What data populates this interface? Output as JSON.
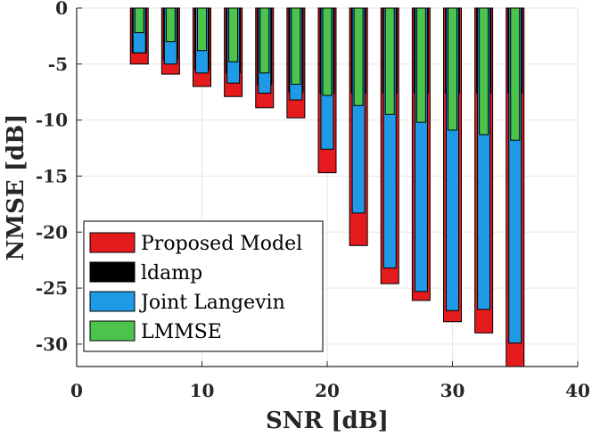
{
  "chart_data": {
    "type": "bar",
    "title": "",
    "xlabel": "SNR [dB]",
    "ylabel": "NMSE [dB]",
    "xlim": [
      0,
      40
    ],
    "ylim": [
      -32,
      0
    ],
    "xticks": [
      0,
      10,
      20,
      30,
      40
    ],
    "yticks": [
      0,
      -5,
      -10,
      -15,
      -20,
      -25,
      -30
    ],
    "grid": true,
    "legend_position": "bottom-left",
    "x": [
      5,
      7.5,
      10,
      12.5,
      15,
      17.5,
      20,
      22.5,
      25,
      27.5,
      30,
      32.5,
      35
    ],
    "series": [
      {
        "name": "Proposed Model",
        "color": "#e41a1c",
        "values": [
          -5.0,
          -5.9,
          -7.0,
          -7.9,
          -8.9,
          -9.8,
          -14.7,
          -21.2,
          -24.6,
          -26.1,
          -28.0,
          -29.0,
          -32.0
        ]
      },
      {
        "name": "ldamp",
        "color": "#000000",
        "values": [
          -4.0,
          -4.6,
          -5.5,
          -5.8,
          -6.8,
          -7.5,
          -7.6,
          -7.6,
          -7.6,
          -7.6,
          -7.6,
          -7.6,
          -7.6
        ]
      },
      {
        "name": "Joint Langevin",
        "color": "#1f9ae6",
        "values": [
          -4.0,
          -5.0,
          -5.8,
          -6.7,
          -7.6,
          -8.2,
          -12.6,
          -18.3,
          -23.2,
          -25.3,
          -27.0,
          -26.9,
          -29.9
        ]
      },
      {
        "name": "LMMSE",
        "color": "#4cc44c",
        "values": [
          -2.2,
          -3.0,
          -3.8,
          -4.8,
          -5.8,
          -6.8,
          -7.8,
          -8.7,
          -9.5,
          -10.2,
          -10.9,
          -11.3,
          -11.8
        ]
      }
    ]
  }
}
